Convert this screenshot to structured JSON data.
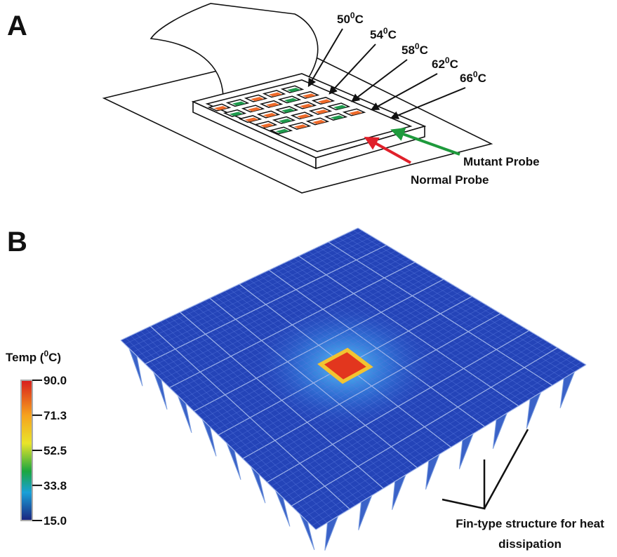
{
  "panel_a": {
    "label": "A",
    "temperatures": [
      {
        "number": "50",
        "sup": "0",
        "unit": "C"
      },
      {
        "number": "54",
        "sup": "0",
        "unit": "C"
      },
      {
        "number": "58",
        "sup": "0",
        "unit": "C"
      },
      {
        "number": "62",
        "sup": "0",
        "unit": "C"
      },
      {
        "number": "66",
        "sup": "0",
        "unit": "C"
      }
    ],
    "probes": {
      "mutant": "Mutant Probe",
      "normal": "Normal Probe"
    }
  },
  "panel_b": {
    "label": "B",
    "colorbar": {
      "title": {
        "before": "Temp (",
        "sup": "0",
        "after": "C)"
      },
      "min": 15,
      "max": 90,
      "ticks": [
        {
          "value": 90,
          "label": "90.0"
        },
        {
          "value": 71.3,
          "label": "71.3"
        },
        {
          "value": 52.5,
          "label": "52.5"
        },
        {
          "value": 33.8,
          "label": "33.8"
        },
        {
          "value": 15,
          "label": "15.0"
        }
      ]
    },
    "annotation": [
      "Fin-type structure for heat",
      "dissipation"
    ]
  }
}
